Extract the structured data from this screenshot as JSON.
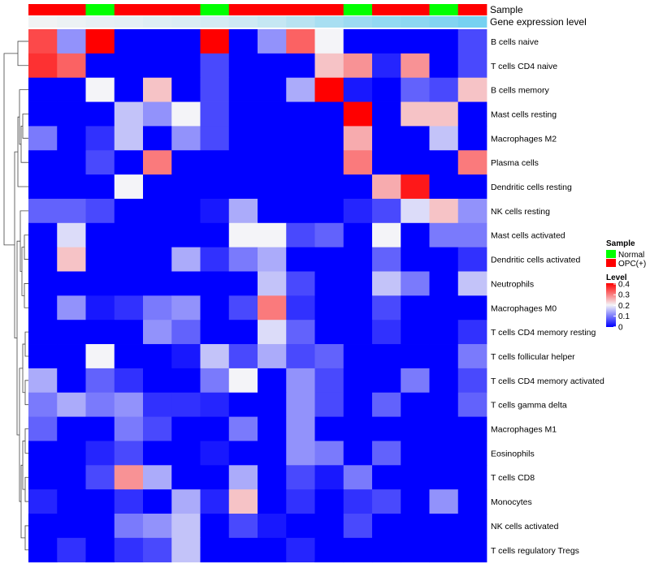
{
  "chart_data": {
    "type": "heatmap",
    "title": "",
    "annotation_rows": {
      "sample_label": "Sample",
      "gene_label": "Gene expression level"
    },
    "columns_sample": [
      "OPC(+)",
      "OPC(+)",
      "Normal",
      "OPC(+)",
      "OPC(+)",
      "OPC(+)",
      "Normal",
      "OPC(+)",
      "OPC(+)",
      "OPC(+)",
      "OPC(+)",
      "Normal",
      "OPC(+)",
      "OPC(+)",
      "Normal",
      "OPC(+)"
    ],
    "columns_gene_level": [
      0.02,
      0.05,
      0.08,
      0.1,
      0.13,
      0.16,
      0.2,
      0.24,
      0.3,
      0.38,
      0.48,
      0.56,
      0.62,
      0.66,
      0.72,
      0.8
    ],
    "rows": [
      "B cells naive",
      "T cells CD4 naive",
      "B cells memory",
      "Mast cells resting",
      "Macrophages M2",
      "Plasma cells",
      "Dendritic cells resting",
      "NK cells resting",
      "Mast cells activated",
      "Dendritic cells activated",
      "Neutrophils",
      "Macrophages M0",
      "T cells CD4 memory resting",
      "T cells follicular helper",
      "T cells CD4 memory activated",
      "T cells gamma delta",
      "Macrophages M1",
      "Eosinophils",
      "T cells CD8",
      "Monocytes",
      "NK cells activated",
      "T cells regulatory  Tregs"
    ],
    "values": [
      [
        0.34,
        0.12,
        0.4,
        0,
        0,
        0,
        0.4,
        0,
        0.12,
        0.32,
        0.2,
        0,
        0,
        0,
        0,
        0.06
      ],
      [
        0.36,
        0.32,
        0,
        0,
        0,
        0,
        0.06,
        0,
        0,
        0,
        0.24,
        0.28,
        0.03,
        0.28,
        0,
        0.06
      ],
      [
        0,
        0,
        0.2,
        0,
        0.24,
        0,
        0.06,
        0,
        0,
        0.14,
        0.4,
        0.02,
        0,
        0.08,
        0.06,
        0.24
      ],
      [
        0,
        0,
        0,
        0.16,
        0.12,
        0.2,
        0.06,
        0,
        0,
        0,
        0,
        0.4,
        0,
        0.24,
        0.24,
        0
      ],
      [
        0.1,
        0,
        0.04,
        0.16,
        0,
        0.12,
        0.06,
        0,
        0,
        0,
        0,
        0.26,
        0,
        0,
        0.16,
        0
      ],
      [
        0,
        0,
        0.06,
        0,
        0.3,
        0,
        0,
        0,
        0,
        0,
        0,
        0.3,
        0,
        0,
        0,
        0.3
      ],
      [
        0,
        0,
        0,
        0.2,
        0,
        0,
        0,
        0,
        0,
        0,
        0,
        0,
        0.26,
        0.38,
        0,
        0
      ],
      [
        0.08,
        0.08,
        0.06,
        0,
        0,
        0,
        0.02,
        0.14,
        0,
        0,
        0,
        0.03,
        0.06,
        0.18,
        0.24,
        0.12
      ],
      [
        0,
        0.18,
        0,
        0,
        0,
        0,
        0,
        0.2,
        0.2,
        0.06,
        0.08,
        0,
        0.2,
        0,
        0.1,
        0.1
      ],
      [
        0,
        0.24,
        0,
        0,
        0,
        0.14,
        0.04,
        0.1,
        0.14,
        0,
        0,
        0,
        0.08,
        0,
        0,
        0.04
      ],
      [
        0,
        0,
        0,
        0,
        0,
        0,
        0,
        0,
        0.16,
        0.06,
        0,
        0,
        0.16,
        0.1,
        0,
        0.16
      ],
      [
        0,
        0.12,
        0.02,
        0.04,
        0.1,
        0.12,
        0,
        0.06,
        0.3,
        0.04,
        0,
        0,
        0.06,
        0,
        0,
        0
      ],
      [
        0,
        0,
        0,
        0,
        0.12,
        0.08,
        0,
        0,
        0.18,
        0.08,
        0,
        0,
        0.04,
        0,
        0,
        0.04
      ],
      [
        0,
        0,
        0.2,
        0,
        0,
        0.02,
        0.16,
        0.06,
        0.14,
        0.06,
        0.08,
        0,
        0,
        0,
        0,
        0.1
      ],
      [
        0.14,
        0,
        0.08,
        0.04,
        0,
        0,
        0.1,
        0.2,
        0,
        0.12,
        0.06,
        0,
        0,
        0.1,
        0,
        0.06
      ],
      [
        0.1,
        0.14,
        0.1,
        0.12,
        0.04,
        0.04,
        0.03,
        0,
        0,
        0.12,
        0.06,
        0,
        0.08,
        0,
        0,
        0.08
      ],
      [
        0.08,
        0,
        0,
        0.1,
        0.06,
        0,
        0,
        0.1,
        0,
        0.12,
        0,
        0,
        0,
        0,
        0,
        0
      ],
      [
        0,
        0,
        0.03,
        0.06,
        0,
        0,
        0.02,
        0,
        0,
        0.12,
        0.1,
        0,
        0.08,
        0,
        0,
        0
      ],
      [
        0,
        0,
        0.06,
        0.28,
        0.14,
        0,
        0,
        0.14,
        0,
        0.06,
        0.02,
        0.1,
        0,
        0,
        0,
        0
      ],
      [
        0.03,
        0,
        0,
        0.04,
        0,
        0.14,
        0.03,
        0.24,
        0,
        0.04,
        0,
        0.04,
        0.06,
        0,
        0.12,
        0
      ],
      [
        0,
        0,
        0,
        0.1,
        0.12,
        0.16,
        0,
        0.06,
        0.02,
        0,
        0,
        0.06,
        0,
        0,
        0,
        0
      ],
      [
        0,
        0.04,
        0,
        0.04,
        0.06,
        0.16,
        0,
        0,
        0,
        0.03,
        0,
        0,
        0,
        0,
        0,
        0
      ]
    ],
    "color_scale": {
      "min": 0,
      "max": 0.4,
      "low_color": "#0000ff",
      "mid_color": "#f4f4f8",
      "high_color": "#ff0000"
    },
    "legend": {
      "sample_title": "Sample",
      "sample_entries": [
        {
          "label": "Normal",
          "color": "#00ff00"
        },
        {
          "label": "OPC(+)",
          "color": "#ff0000"
        }
      ],
      "level_title": "Level",
      "level_ticks": [
        "0.4",
        "0.3",
        "0.2",
        "0.1",
        "0"
      ],
      "placement": "right"
    },
    "gene_level_colors": {
      "low": "#f4f4f4",
      "high": "#56c8f0"
    },
    "dendrogram": "left"
  }
}
